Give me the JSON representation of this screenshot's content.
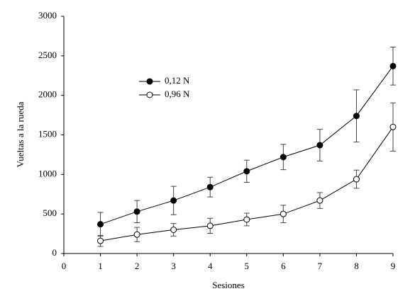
{
  "chart_data": {
    "type": "line",
    "x_label": "Sesiones",
    "y_label": "Vueltas a la rueda",
    "x": [
      1,
      2,
      3,
      4,
      5,
      6,
      7,
      8,
      9
    ],
    "xlim": [
      0,
      9
    ],
    "xticks": [
      0,
      1,
      2,
      3,
      4,
      5,
      6,
      7,
      8,
      9
    ],
    "ylim": [
      0,
      3000
    ],
    "yticks": [
      0,
      500,
      1000,
      1500,
      2000,
      2500,
      3000
    ],
    "grid": false,
    "legend_loc": "upper left",
    "series": [
      {
        "name": "0,12 N",
        "color": "#000000",
        "marker_fill": "#000000",
        "values": [
          370,
          530,
          670,
          840,
          1040,
          1220,
          1370,
          1740,
          2370
        ],
        "errors": [
          150,
          140,
          180,
          125,
          140,
          160,
          200,
          330,
          240
        ]
      },
      {
        "name": "0,96 N",
        "color": "#000000",
        "marker_fill": "#ffffff",
        "values": [
          160,
          240,
          300,
          350,
          430,
          500,
          670,
          940,
          1600
        ],
        "errors": [
          70,
          90,
          80,
          95,
          80,
          110,
          100,
          115,
          305
        ]
      }
    ]
  }
}
